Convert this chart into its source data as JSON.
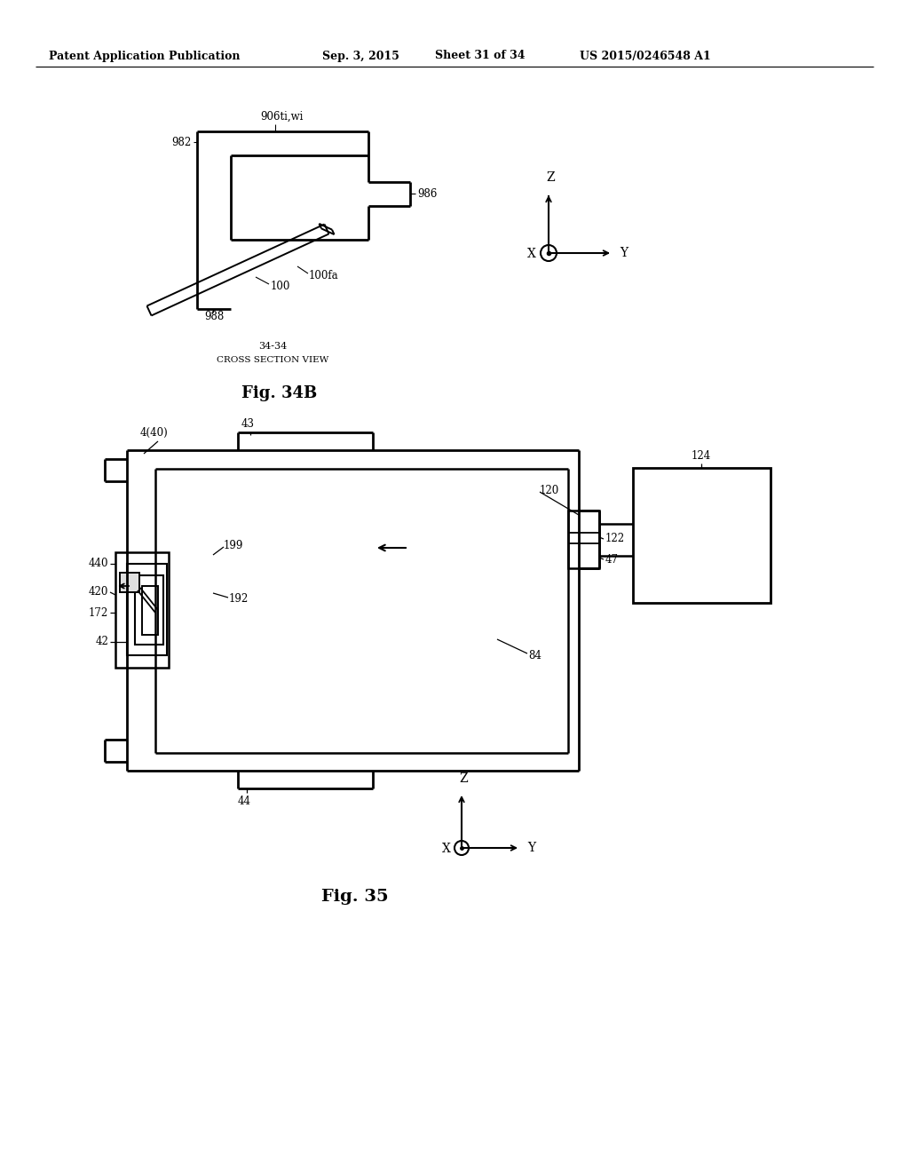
{
  "bg_color": "#ffffff",
  "header_text": "Patent Application Publication",
  "header_date": "Sep. 3, 2015",
  "header_sheet": "Sheet 31 of 34",
  "header_patent": "US 2015/0246548 A1",
  "fig34b_title": "Fig. 34B",
  "fig35_title": "Fig. 35",
  "caption_34_line1": "34-34",
  "caption_34_line2": "CROSS SECTION VIEW"
}
